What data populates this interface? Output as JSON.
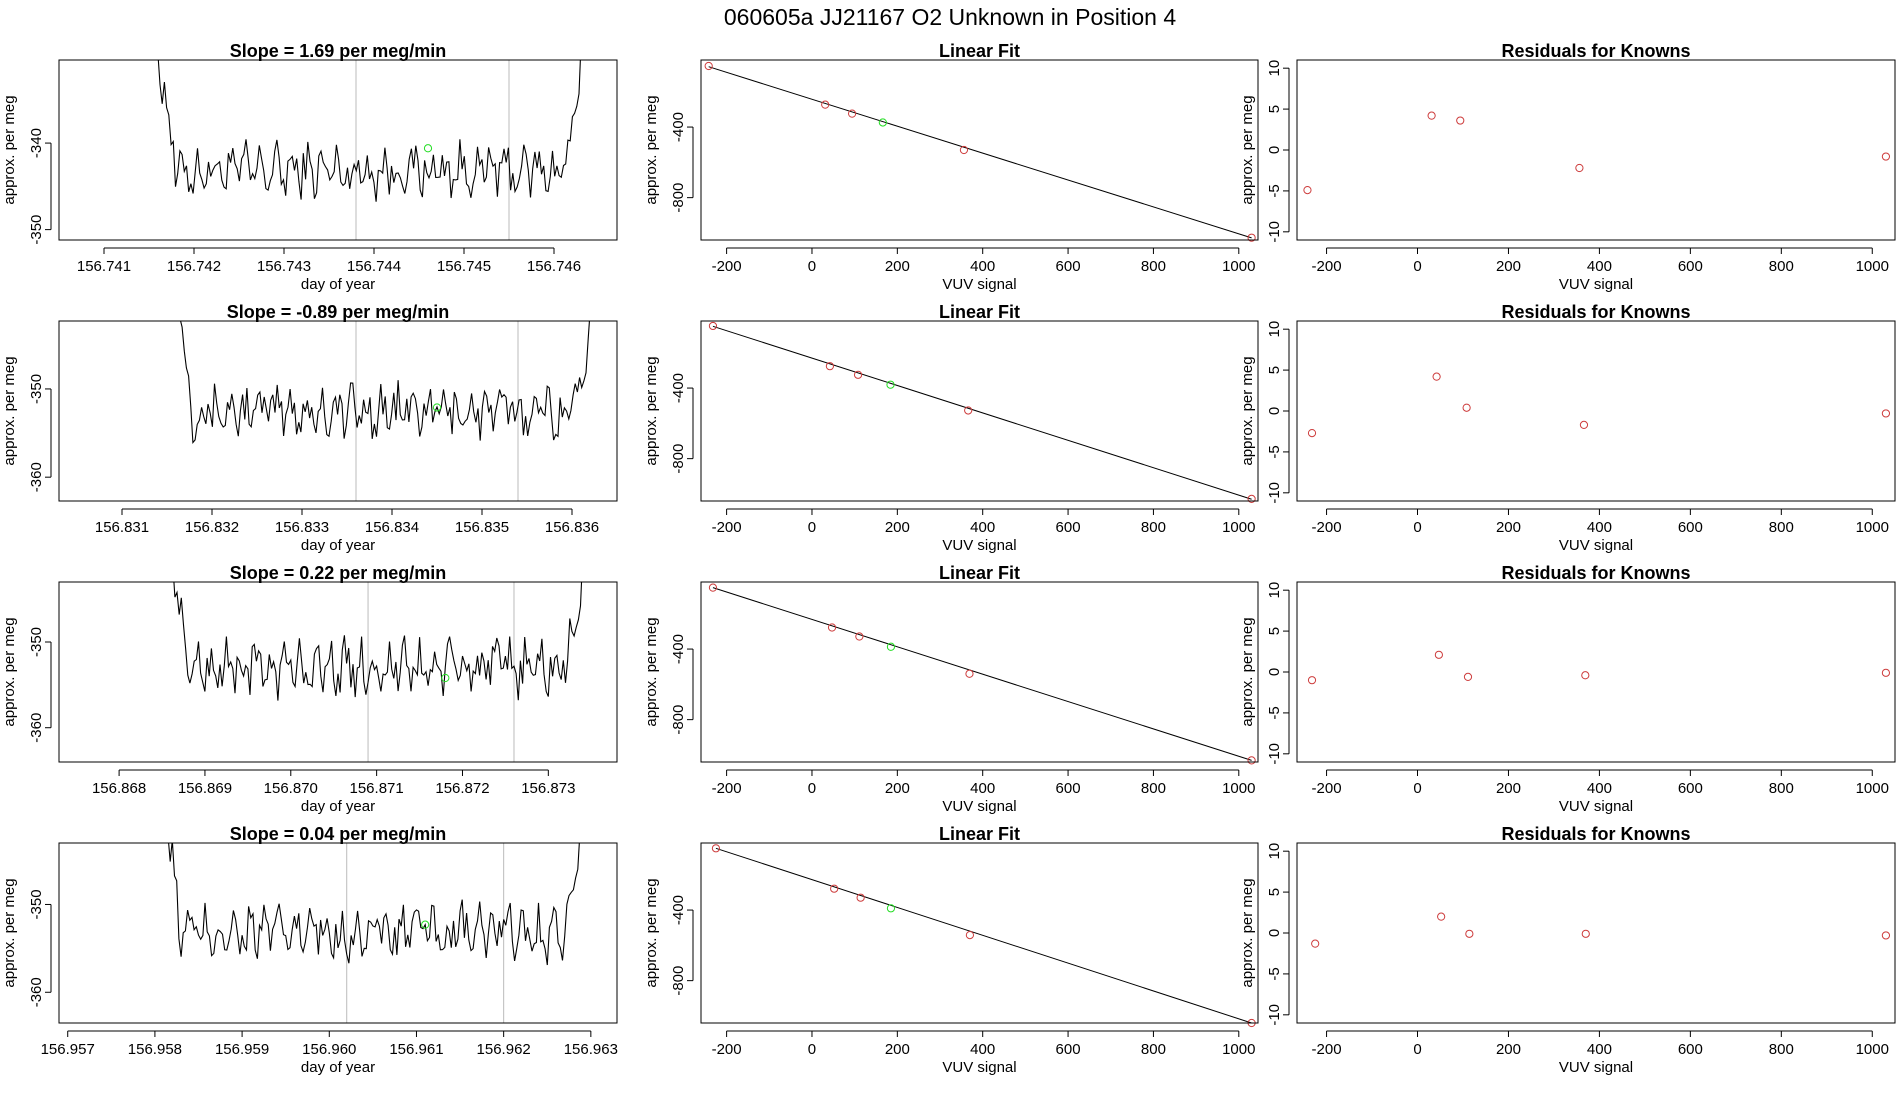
{
  "suptitle": "060605a      JJ21167    O2 Unknown in Position  4",
  "colors": {
    "known": "#cd3b3b",
    "unknown": "#22dd22",
    "line": "#000000",
    "marker": "#bbbbbb"
  },
  "time_panel": {
    "xlabel": "day of year",
    "ylabel": "approx. per meg"
  },
  "fit_panel": {
    "title": "Linear Fit",
    "xlabel": "VUV signal",
    "ylabel": "approx. per meg",
    "xticks": [
      -200,
      0,
      200,
      400,
      600,
      800,
      1000
    ],
    "yticks": [
      -400,
      -800
    ],
    "xlim": [
      -260,
      1045
    ],
    "ylim": [
      -1040,
      -20
    ]
  },
  "resid_panel": {
    "title": "Residuals for Knowns",
    "xlabel": "VUV signal",
    "ylabel": "approx. per meg",
    "xticks": [
      -200,
      0,
      200,
      400,
      600,
      800,
      1000
    ],
    "yticks": [
      -10,
      -5,
      0,
      5,
      10
    ],
    "xlim": [
      -265,
      1050
    ],
    "ylim": [
      -11,
      11
    ]
  },
  "rows": [
    {
      "slope_title": "Slope =  1.69  per meg/min",
      "time": {
        "xticks": [
          "156.741",
          "156.742",
          "156.743",
          "156.744",
          "156.745",
          "156.746"
        ],
        "xtick_values": [
          156.741,
          156.742,
          156.743,
          156.744,
          156.745,
          156.746
        ],
        "xlim": [
          156.7405,
          156.7467
        ],
        "yticks": [
          -340,
          -350
        ],
        "ylim": [
          -351.2,
          -330.4
        ],
        "vlines": [
          156.7438,
          156.7455
        ],
        "start": 156.7415,
        "end": 156.7464,
        "base": -343.2,
        "amp": 2.4,
        "green_point": [
          156.7446,
          -340.6
        ]
      },
      "fit": {
        "known": [
          [
            -242,
            -54
          ],
          [
            31,
            -273
          ],
          [
            94,
            -324
          ],
          [
            356,
            -530
          ],
          [
            1030,
            -1027
          ]
        ],
        "unknown": [
          [
            166,
            -374
          ]
        ],
        "line": [
          [
            -242,
            -58
          ],
          [
            1030,
            -1028
          ]
        ]
      },
      "resid": {
        "known": [
          [
            -242,
            -4.9
          ],
          [
            31,
            4.2
          ],
          [
            94,
            3.6
          ],
          [
            356,
            -2.2
          ],
          [
            1030,
            -0.8
          ]
        ]
      }
    },
    {
      "slope_title": "Slope =  -0.89  per meg/min",
      "time": {
        "xticks": [
          "156.831",
          "156.832",
          "156.833",
          "156.834",
          "156.835",
          "156.836"
        ],
        "xtick_values": [
          156.831,
          156.832,
          156.833,
          156.834,
          156.835,
          156.836
        ],
        "xlim": [
          156.8303,
          156.8365
        ],
        "yticks": [
          -350,
          -360
        ],
        "ylim": [
          -362.7,
          -342.3
        ],
        "vlines": [
          156.8336,
          156.8354
        ],
        "start": 156.8315,
        "end": 156.8363,
        "base": -352.5,
        "amp": 2.3,
        "green_point": [
          156.8345,
          -352.1
        ]
      },
      "fit": {
        "known": [
          [
            -232,
            -48
          ],
          [
            42,
            -276
          ],
          [
            108,
            -325
          ],
          [
            366,
            -527
          ],
          [
            1030,
            -1028
          ]
        ],
        "unknown": [
          [
            184,
            -381
          ]
        ],
        "line": [
          [
            -232,
            -50
          ],
          [
            1030,
            -1030
          ]
        ]
      },
      "resid": {
        "known": [
          [
            -232,
            -2.7
          ],
          [
            42,
            4.2
          ],
          [
            108,
            0.4
          ],
          [
            366,
            -1.7
          ],
          [
            1030,
            -0.3
          ]
        ]
      }
    },
    {
      "slope_title": "Slope =  0.22  per meg/min",
      "time": {
        "xticks": [
          "156.868",
          "156.869",
          "156.870",
          "156.871",
          "156.872",
          "156.873"
        ],
        "xtick_values": [
          156.868,
          156.869,
          156.87,
          156.871,
          156.872,
          156.873
        ],
        "xlim": [
          156.8673,
          156.8738
        ],
        "yticks": [
          -350,
          -360
        ],
        "ylim": [
          -364.0,
          -343.0
        ],
        "vlines": [
          156.8709,
          156.8726
        ],
        "start": 156.8685,
        "end": 156.8735,
        "base": -353.0,
        "amp": 2.5,
        "green_point": [
          156.8718,
          -354.2
        ]
      },
      "fit": {
        "known": [
          [
            -232,
            -52
          ],
          [
            47,
            -278
          ],
          [
            111,
            -329
          ],
          [
            369,
            -540
          ],
          [
            1030,
            -1031
          ]
        ],
        "unknown": [
          [
            185,
            -387
          ]
        ],
        "line": [
          [
            -232,
            -52
          ],
          [
            1030,
            -1031
          ]
        ]
      },
      "resid": {
        "known": [
          [
            -232,
            -1.0
          ],
          [
            47,
            2.1
          ],
          [
            111,
            -0.6
          ],
          [
            369,
            -0.4
          ],
          [
            1030,
            -0.1
          ]
        ]
      }
    },
    {
      "slope_title": "Slope =  0.04  per meg/min",
      "time": {
        "xticks": [
          "156.957",
          "156.958",
          "156.959",
          "156.960",
          "156.961",
          "156.962",
          "156.963"
        ],
        "xtick_values": [
          156.957,
          156.958,
          156.959,
          156.96,
          156.961,
          156.962,
          156.963
        ],
        "xlim": [
          156.9569,
          156.9633
        ],
        "yticks": [
          -350,
          -360
        ],
        "ylim": [
          -363.5,
          -343.0
        ],
        "vlines": [
          156.9602,
          156.962
        ],
        "start": 156.958,
        "end": 156.963,
        "base": -353.2,
        "amp": 2.4,
        "green_point": [
          156.9611,
          -352.3
        ]
      },
      "fit": {
        "known": [
          [
            -225,
            -50
          ],
          [
            52,
            -279
          ],
          [
            114,
            -330
          ],
          [
            370,
            -542
          ],
          [
            1030,
            -1040
          ]
        ],
        "unknown": [
          [
            185,
            -390
          ]
        ],
        "line": [
          [
            -225,
            -50
          ],
          [
            1030,
            -1040
          ]
        ]
      },
      "resid": {
        "known": [
          [
            -225,
            -1.3
          ],
          [
            52,
            2.0
          ],
          [
            114,
            -0.1
          ],
          [
            370,
            -0.1
          ],
          [
            1030,
            -0.3
          ]
        ]
      }
    }
  ],
  "chart_data": [
    {
      "type": "line",
      "title": "Slope =  1.69  per meg/min",
      "xlabel": "day of year",
      "ylabel": "approx. per meg",
      "xlim": [
        156.7405,
        156.7467
      ],
      "ylim": [
        -351.2,
        -330.4
      ],
      "x_ticks": [
        "156.741",
        "156.742",
        "156.743",
        "156.744",
        "156.745",
        "156.746"
      ],
      "y_ticks": [
        -340,
        -350
      ],
      "vertical_markers": [
        156.7438,
        156.7455
      ],
      "highlight_point": [
        156.7446,
        -340.6
      ],
      "grid": false
    },
    {
      "type": "scatter",
      "title": "Linear Fit",
      "xlabel": "VUV signal",
      "ylabel": "approx. per meg",
      "known": [
        [
          -242,
          -54
        ],
        [
          31,
          -273
        ],
        [
          94,
          -324
        ],
        [
          356,
          -530
        ],
        [
          1030,
          -1027
        ]
      ],
      "unknown": [
        [
          166,
          -374
        ]
      ],
      "fit_line": [
        [
          -242,
          -58
        ],
        [
          1030,
          -1028
        ]
      ],
      "grid": false
    },
    {
      "type": "scatter",
      "title": "Residuals for Knowns",
      "xlabel": "VUV signal",
      "ylabel": "approx. per meg",
      "x": [
        -242,
        31,
        94,
        356,
        1030
      ],
      "y": [
        -4.9,
        4.2,
        3.6,
        -2.2,
        -0.8
      ],
      "ylim": [
        -11,
        11
      ],
      "grid": false
    },
    {
      "type": "line",
      "title": "Slope =  -0.89  per meg/min",
      "xlabel": "day of year",
      "ylabel": "approx. per meg",
      "xlim": [
        156.8303,
        156.8365
      ],
      "ylim": [
        -362.7,
        -342.3
      ],
      "x_ticks": [
        "156.831",
        "156.832",
        "156.833",
        "156.834",
        "156.835",
        "156.836"
      ],
      "y_ticks": [
        -350,
        -360
      ],
      "vertical_markers": [
        156.8336,
        156.8354
      ],
      "highlight_point": [
        156.8345,
        -352.1
      ],
      "grid": false
    },
    {
      "type": "scatter",
      "title": "Linear Fit",
      "xlabel": "VUV signal",
      "ylabel": "approx. per meg",
      "known": [
        [
          -232,
          -48
        ],
        [
          42,
          -276
        ],
        [
          108,
          -325
        ],
        [
          366,
          -527
        ],
        [
          1030,
          -1028
        ]
      ],
      "unknown": [
        [
          184,
          -381
        ]
      ],
      "fit_line": [
        [
          -232,
          -50
        ],
        [
          1030,
          -1030
        ]
      ],
      "grid": false
    },
    {
      "type": "scatter",
      "title": "Residuals for Knowns",
      "xlabel": "VUV signal",
      "ylabel": "approx. per meg",
      "x": [
        -232,
        42,
        108,
        366,
        1030
      ],
      "y": [
        -2.7,
        4.2,
        0.4,
        -1.7,
        -0.3
      ],
      "ylim": [
        -11,
        11
      ],
      "grid": false
    },
    {
      "type": "line",
      "title": "Slope =  0.22  per meg/min",
      "xlabel": "day of year",
      "ylabel": "approx. per meg",
      "xlim": [
        156.8673,
        156.8738
      ],
      "ylim": [
        -364.0,
        -343.0
      ],
      "x_ticks": [
        "156.868",
        "156.869",
        "156.870",
        "156.871",
        "156.872",
        "156.873"
      ],
      "y_ticks": [
        -350,
        -360
      ],
      "vertical_markers": [
        156.8709,
        156.8726
      ],
      "highlight_point": [
        156.8718,
        -354.2
      ],
      "grid": false
    },
    {
      "type": "scatter",
      "title": "Linear Fit",
      "xlabel": "VUV signal",
      "ylabel": "approx. per meg",
      "known": [
        [
          -232,
          -52
        ],
        [
          47,
          -278
        ],
        [
          111,
          -329
        ],
        [
          369,
          -540
        ],
        [
          1030,
          -1031
        ]
      ],
      "unknown": [
        [
          185,
          -387
        ]
      ],
      "fit_line": [
        [
          -232,
          -52
        ],
        [
          1030,
          -1031
        ]
      ],
      "grid": false
    },
    {
      "type": "scatter",
      "title": "Residuals for Knowns",
      "xlabel": "VUV signal",
      "ylabel": "approx. per meg",
      "x": [
        -232,
        47,
        111,
        369,
        1030
      ],
      "y": [
        -1.0,
        2.1,
        -0.6,
        -0.4,
        -0.1
      ],
      "ylim": [
        -11,
        11
      ],
      "grid": false
    },
    {
      "type": "line",
      "title": "Slope =  0.04  per meg/min",
      "xlabel": "day of year",
      "ylabel": "approx. per meg",
      "xlim": [
        156.9569,
        156.9633
      ],
      "ylim": [
        -363.5,
        -343.0
      ],
      "x_ticks": [
        "156.957",
        "156.958",
        "156.959",
        "156.960",
        "156.961",
        "156.962",
        "156.963"
      ],
      "y_ticks": [
        -350,
        -360
      ],
      "vertical_markers": [
        156.9602,
        156.962
      ],
      "highlight_point": [
        156.9611,
        -352.3
      ],
      "grid": false
    },
    {
      "type": "scatter",
      "title": "Linear Fit",
      "xlabel": "VUV signal",
      "ylabel": "approx. per meg",
      "known": [
        [
          -225,
          -50
        ],
        [
          52,
          -279
        ],
        [
          114,
          -330
        ],
        [
          370,
          -542
        ],
        [
          1030,
          -1040
        ]
      ],
      "unknown": [
        [
          185,
          -390
        ]
      ],
      "fit_line": [
        [
          -225,
          -50
        ],
        [
          1030,
          -1040
        ]
      ],
      "grid": false
    },
    {
      "type": "scatter",
      "title": "Residuals for Knowns",
      "xlabel": "VUV signal",
      "ylabel": "approx. per meg",
      "x": [
        -225,
        52,
        114,
        370,
        1030
      ],
      "y": [
        -1.3,
        2.0,
        -0.1,
        -0.1,
        -0.3
      ],
      "ylim": [
        -11,
        11
      ],
      "grid": false
    }
  ]
}
